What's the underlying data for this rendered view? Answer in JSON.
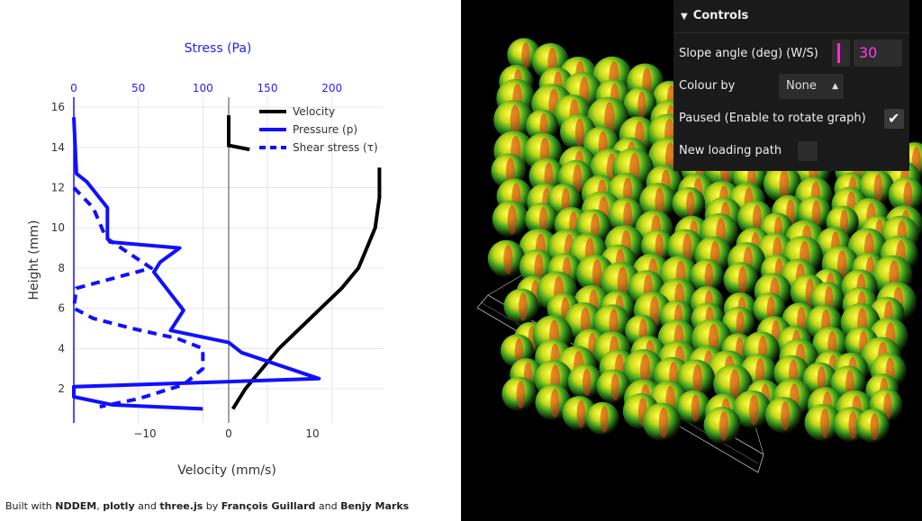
{
  "chart_data": {
    "type": "line",
    "title": "",
    "top_axis": {
      "label": "Stress (Pa)",
      "ticks": [
        0,
        50,
        100,
        150,
        200
      ],
      "range": [
        0,
        240
      ]
    },
    "xlabel": "Velocity (mm/s)",
    "xticks": [
      -10,
      0,
      10
    ],
    "xlim": [
      -18.5,
      18.5
    ],
    "ylabel": "Height (mm)",
    "yticks": [
      2,
      4,
      6,
      8,
      10,
      12,
      14,
      16
    ],
    "ylim": [
      0.3,
      16.5
    ],
    "legend_position": "top-right",
    "series": [
      {
        "name": "Velocity",
        "axis": "bottom",
        "color": "#000000",
        "dash": "solid",
        "x": [
          0.5,
          2.0,
          4.0,
          6.0,
          8.5,
          11.0,
          13.5,
          15.5,
          16.5,
          17.5,
          18.0,
          18.0
        ],
        "y": [
          1.0,
          2.0,
          3.0,
          4.0,
          5.0,
          6.0,
          7.0,
          8.0,
          9.0,
          10.0,
          11.5,
          13.0
        ]
      },
      {
        "name": "Pressure (p)",
        "axis": "top",
        "color": "#1010ff",
        "dash": "solid",
        "x": [
          0,
          2,
          8,
          26,
          26,
          28,
          82,
          65,
          68,
          85,
          78,
          52,
          28,
          25,
          20,
          15,
          0,
          0
        ],
        "y": [
          16,
          13,
          12.5,
          12,
          10,
          9.5,
          9,
          8,
          7,
          6,
          5,
          4.2,
          3,
          2.7,
          2.5,
          1.6,
          1.0,
          1.0
        ],
        "px": [
          0,
          2,
          10,
          26,
          26,
          28,
          82,
          67,
          62,
          85,
          75,
          120,
          130,
          190,
          0,
          0,
          30,
          100
        ],
        "py": [
          15.5,
          12.7,
          12.3,
          11,
          9.5,
          9.3,
          9,
          8.3,
          7.8,
          5.9,
          4.9,
          4.3,
          3.8,
          2.5,
          2.1,
          1.6,
          1.2,
          1.0
        ]
      },
      {
        "name": "Shear stress (τ)",
        "axis": "top",
        "color": "#1010ff",
        "dash": "dashed",
        "x": [
          0,
          15,
          25,
          60,
          2,
          0,
          15,
          45,
          80,
          100,
          100,
          85,
          50,
          20
        ],
        "y": [
          12,
          11,
          9.5,
          8,
          7,
          6,
          5.5,
          5,
          4.5,
          4,
          3,
          2.2,
          1.5,
          1.1
        ]
      }
    ]
  },
  "footer": {
    "prefix": "Built with ",
    "nddem": "NDDEM",
    "sep1": ", ",
    "plotly": "plotly",
    "and1": " and ",
    "threejs": "three.js",
    "by": " by ",
    "author1": "François Guillard",
    "and2": " and ",
    "author2": "Benjy Marks"
  },
  "controls": {
    "header": "Controls",
    "slope_label": "Slope angle (deg) (W/S)",
    "slope_value": "30",
    "colour_label": "Colour by",
    "colour_value": "None",
    "paused_label": "Paused (Enable to rotate graph)",
    "paused_checked": true,
    "loading_label": "New loading path",
    "loading_checked": false,
    "accent": "#ff2bd6"
  }
}
